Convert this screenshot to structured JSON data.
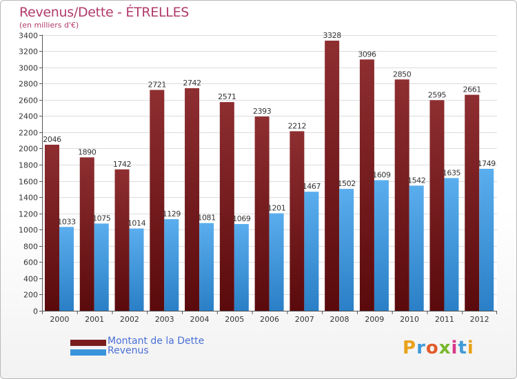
{
  "chart_data": {
    "type": "bar",
    "title": "Revenus/Dette - ÉTRELLES",
    "subtitle": "(en milliers d'€)",
    "categories": [
      "2000",
      "2001",
      "2002",
      "2003",
      "2004",
      "2005",
      "2006",
      "2007",
      "2008",
      "2009",
      "2010",
      "2011",
      "2012"
    ],
    "series": [
      {
        "name": "Montant de la Dette",
        "color": "#7a1d1f",
        "values": [
          2046,
          1890,
          1742,
          2721,
          2742,
          2571,
          2393,
          2212,
          3328,
          3096,
          2850,
          2595,
          2661
        ]
      },
      {
        "name": "Revenus",
        "color": "#3a94dc",
        "values": [
          1033,
          1075,
          1014,
          1129,
          1081,
          1069,
          1201,
          1467,
          1502,
          1609,
          1542,
          1635,
          1749
        ]
      }
    ],
    "ylim": [
      0,
      3400
    ],
    "ytick_step": 200,
    "grid": true,
    "legend_position": "bottom-left",
    "data_labels": true
  },
  "branding": {
    "logo_text": "Proxiti"
  }
}
